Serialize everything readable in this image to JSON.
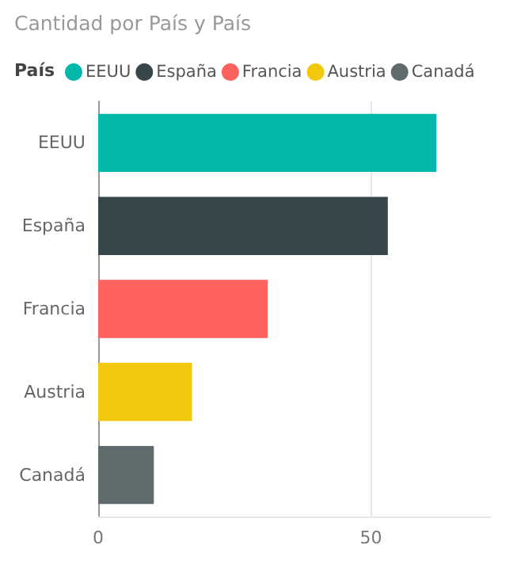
{
  "chart_data": {
    "type": "bar",
    "orientation": "horizontal",
    "title": "Cantidad por País y País",
    "legend_title": "País",
    "categories": [
      "EEUU",
      "España",
      "Francia",
      "Austria",
      "Canadá"
    ],
    "series": [
      {
        "name": "EEUU",
        "color": "#01b8aa",
        "values": [
          62,
          null,
          null,
          null,
          null
        ]
      },
      {
        "name": "España",
        "color": "#374649",
        "values": [
          null,
          53.1,
          null,
          null,
          null
        ]
      },
      {
        "name": "Francia",
        "color": "#fd625e",
        "values": [
          null,
          null,
          31.1,
          null,
          null
        ]
      },
      {
        "name": "Austria",
        "color": "#f2c80f",
        "values": [
          null,
          null,
          null,
          17.2,
          null
        ]
      },
      {
        "name": "Canadá",
        "color": "#5f6b6d",
        "values": [
          null,
          null,
          null,
          null,
          10.2
        ]
      }
    ],
    "xlim": [
      0,
      72
    ],
    "xticks": [
      0,
      50
    ],
    "grid": "x",
    "legend": "top left"
  }
}
